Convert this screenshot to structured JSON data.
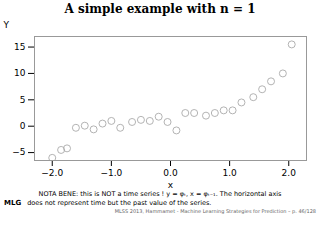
{
  "chart_data": {
    "type": "scatter",
    "title": "A simple example with n = 1",
    "xlabel": "x",
    "ylabel": "Y",
    "x": [
      -2.0,
      -1.85,
      -1.75,
      -1.6,
      -1.45,
      -1.3,
      -1.15,
      -1.0,
      -0.85,
      -0.65,
      -0.5,
      -0.35,
      -0.2,
      -0.05,
      0.1,
      0.25,
      0.4,
      0.6,
      0.75,
      0.9,
      1.05,
      1.2,
      1.4,
      1.55,
      1.7,
      1.9,
      2.05
    ],
    "y": [
      -6.0,
      -4.5,
      -4.2,
      -0.3,
      0.1,
      -0.6,
      0.5,
      1.0,
      -0.3,
      0.8,
      1.2,
      1.0,
      1.8,
      0.8,
      -0.8,
      2.5,
      2.5,
      2.0,
      2.5,
      3.0,
      3.0,
      4.5,
      5.5,
      7.0,
      8.5,
      10.0,
      15.5
    ],
    "color": "#aaaaaa",
    "marker": "circle",
    "xlim": [
      -2.3,
      2.3
    ],
    "ylim": [
      -6.5,
      17
    ],
    "xticks": [
      -2,
      -1,
      0,
      1,
      2
    ],
    "yticks": [
      -5,
      0,
      5,
      10,
      15
    ],
    "annotations": [
      "NOTA BENE: this is NOT a time series ! y = φₜ, x = φₜ₋₁. The horizontal axis",
      "MLG",
      "does not represent time but the past value of the series.",
      "MLSS 2013, Hammamet - Machine Learning Strategies for Prediction – p. 46/128"
    ]
  }
}
